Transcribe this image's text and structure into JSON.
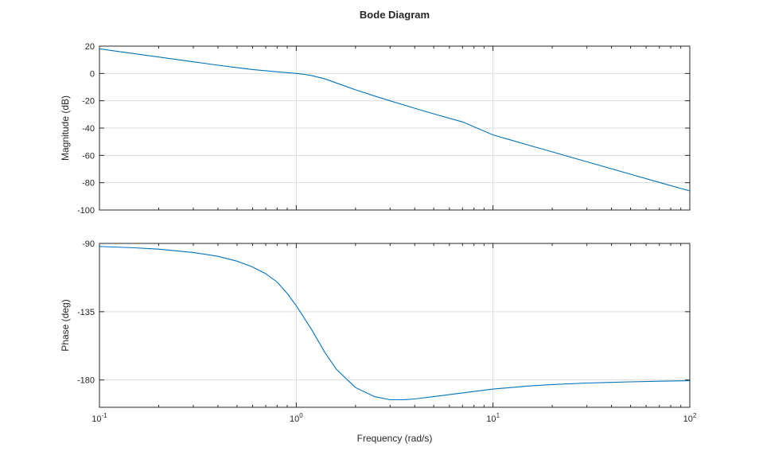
{
  "chart_data": {
    "type": "line",
    "title": "Bode Diagram",
    "xlabel": "Frequency (rad/s)",
    "xscale": "log",
    "xlim": [
      0.1,
      100
    ],
    "x_ticks": [
      {
        "base": "10",
        "exp": "-1",
        "value": 0.1
      },
      {
        "base": "10",
        "exp": "0",
        "value": 1
      },
      {
        "base": "10",
        "exp": "1",
        "value": 10
      },
      {
        "base": "10",
        "exp": "2",
        "value": 100
      }
    ],
    "grid": true,
    "line_color": "#0072BD",
    "panels": [
      {
        "name": "magnitude",
        "ylabel": "Magnitude (dB)",
        "ylim": [
          -100,
          20
        ],
        "yticks": [
          20,
          0,
          -20,
          -40,
          -60,
          -80,
          -100
        ],
        "series": [
          {
            "x": [
              0.1,
              0.15,
              0.2,
              0.3,
              0.4,
              0.5,
              0.6,
              0.7,
              0.8,
              0.9,
              1.0,
              1.1,
              1.2,
              1.4,
              1.6,
              1.8,
              2.0,
              2.5,
              3.0,
              4.0,
              5.0,
              7.0,
              10,
              15,
              20,
              30,
              50,
              70,
              100
            ],
            "values": [
              18,
              14.5,
              12,
              8.5,
              6,
              4.2,
              2.9,
              2,
              1.2,
              0.6,
              0,
              -0.7,
              -1.6,
              -4,
              -7,
              -9.6,
              -12,
              -16.5,
              -20,
              -25.5,
              -29.6,
              -35.5,
              -45,
              -52.3,
              -57.4,
              -64.7,
              -73.8,
              -79.8,
              -86
            ]
          }
        ]
      },
      {
        "name": "phase",
        "ylabel": "Phase (deg)",
        "ylim": [
          -198,
          -90
        ],
        "yticks": [
          -90,
          -135,
          -180
        ],
        "series": [
          {
            "x": [
              0.1,
              0.15,
              0.2,
              0.3,
              0.4,
              0.5,
              0.6,
              0.7,
              0.8,
              0.9,
              1.0,
              1.2,
              1.4,
              1.6,
              2.0,
              2.5,
              3.0,
              3.5,
              4.0,
              5.0,
              7.0,
              10,
              15,
              20,
              30,
              50,
              70,
              100
            ],
            "values": [
              -92,
              -92.9,
              -93.8,
              -96,
              -98.5,
              -101.7,
              -105.5,
              -110,
              -115.5,
              -123,
              -131,
              -147,
              -162,
              -173,
              -185,
              -191,
              -193,
              -193,
              -192.5,
              -191,
              -188.5,
              -186,
              -184,
              -183,
              -182,
              -181.2,
              -180.8,
              -180.5
            ]
          }
        ]
      }
    ]
  }
}
